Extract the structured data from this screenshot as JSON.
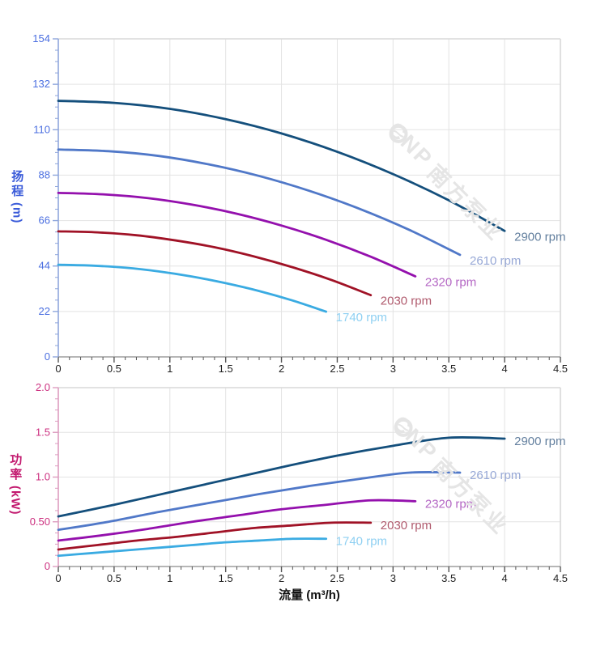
{
  "watermark": {
    "brand": "CNP",
    "brand_cn": "南方泵业"
  },
  "chart_data": [
    {
      "type": "line",
      "id": "head-vs-flow",
      "ylabel": "扬程",
      "y_unit": "(m)",
      "xlabel": "",
      "xlim": [
        0,
        4.5
      ],
      "ylim": [
        0,
        154
      ],
      "x_major": 0.5,
      "x_minor": 0.1,
      "y_major": 22,
      "y_minor": 5.5,
      "x_tick_labels": [
        "0",
        "0.5",
        "1",
        "1.5",
        "2",
        "2.5",
        "3",
        "3.5",
        "4",
        "4.5"
      ],
      "y_tick_labels": [
        "0",
        "22",
        "44",
        "66",
        "88",
        "110",
        "132",
        "154"
      ],
      "grid": true,
      "legend_position": "end-of-line",
      "colors": {
        "y_tick": "#4a6ee0",
        "x_tick": "#222222",
        "y_axis": "#8fa6dc",
        "x_axis": "#9e9e9e",
        "grid": "#e3e3e3",
        "border": "#d9d9d9"
      },
      "series": [
        {
          "name": "2900 rpm",
          "color": "#144f7c",
          "label_color": "#64809f",
          "x": [
            0,
            0.5,
            1,
            1.5,
            2,
            2.5,
            3,
            3.5,
            4
          ],
          "y": [
            124,
            123,
            120.1,
            115.1,
            108.2,
            99.3,
            88.5,
            75.8,
            61
          ]
        },
        {
          "name": "2610 rpm",
          "color": "#5078c8",
          "label_color": "#97a8d6",
          "x": [
            0,
            0.45,
            0.9,
            1.35,
            1.8,
            2.25,
            2.7,
            3.15,
            3.6
          ],
          "y": [
            100.4,
            99.6,
            97.3,
            93.2,
            87.6,
            80.4,
            71.7,
            61.4,
            49.4
          ]
        },
        {
          "name": "2320 rpm",
          "color": "#9410ad",
          "label_color": "#b467c4",
          "x": [
            0,
            0.4,
            0.8,
            1.2,
            1.6,
            2,
            2.4,
            2.8,
            3.2
          ],
          "y": [
            79.4,
            78.7,
            76.9,
            73.7,
            69.3,
            63.6,
            56.7,
            48.5,
            39
          ]
        },
        {
          "name": "2030 rpm",
          "color": "#a01226",
          "label_color": "#b05b6e",
          "x": [
            0,
            0.35,
            0.7,
            1.05,
            1.4,
            1.75,
            2.1,
            2.45,
            2.8
          ],
          "y": [
            60.8,
            60.3,
            58.9,
            56.4,
            53.1,
            48.7,
            43.4,
            37.2,
            29.9
          ]
        },
        {
          "name": "1740 rpm",
          "color": "#3aabe2",
          "label_color": "#8fd0f2",
          "x": [
            0,
            0.3,
            0.6,
            0.9,
            1.2,
            1.5,
            1.8,
            2.1,
            2.4
          ],
          "y": [
            44.6,
            44.2,
            43.2,
            41.4,
            38.9,
            35.7,
            31.9,
            27.3,
            21.9
          ]
        }
      ]
    },
    {
      "type": "line",
      "id": "power-vs-flow",
      "ylabel": "功率",
      "y_unit": "(kW)",
      "xlabel": "流量 (m³/h)",
      "xlim": [
        0,
        4.5
      ],
      "ylim": [
        0,
        2
      ],
      "x_major": 0.5,
      "x_minor": 0.1,
      "y_major": 0.5,
      "y_minor": 0.125,
      "x_tick_labels": [
        "0",
        "0.5",
        "1",
        "1.5",
        "2",
        "2.5",
        "3",
        "3.5",
        "4",
        "4.5"
      ],
      "y_tick_labels": [
        "0",
        "0.50",
        "1.0",
        "1.5",
        "2.0"
      ],
      "grid": true,
      "legend_position": "end-of-line",
      "colors": {
        "y_tick": "#cc2f7f",
        "x_tick": "#222222",
        "y_axis": "#dd9cc0",
        "x_axis": "#9e9e9e",
        "grid": "#e3e3e3",
        "border": "#d9d9d9"
      },
      "series": [
        {
          "name": "2900 rpm",
          "color": "#144f7c",
          "label_color": "#64809f",
          "x": [
            0,
            0.5,
            1,
            1.5,
            2,
            2.5,
            3,
            3.5,
            4
          ],
          "y": [
            0.56,
            0.69,
            0.83,
            0.97,
            1.11,
            1.24,
            1.35,
            1.44,
            1.43
          ]
        },
        {
          "name": "2610 rpm",
          "color": "#5078c8",
          "label_color": "#97a8d6",
          "x": [
            0,
            0.45,
            0.9,
            1.35,
            1.8,
            2.25,
            2.7,
            3.15,
            3.6
          ],
          "y": [
            0.41,
            0.5,
            0.61,
            0.71,
            0.81,
            0.9,
            0.98,
            1.05,
            1.05
          ]
        },
        {
          "name": "2320 rpm",
          "color": "#9410ad",
          "label_color": "#b467c4",
          "x": [
            0,
            0.4,
            0.8,
            1.2,
            1.6,
            2,
            2.4,
            2.8,
            3.2
          ],
          "y": [
            0.29,
            0.35,
            0.42,
            0.5,
            0.57,
            0.64,
            0.69,
            0.74,
            0.73
          ]
        },
        {
          "name": "2030 rpm",
          "color": "#a01226",
          "label_color": "#b05b6e",
          "x": [
            0,
            0.35,
            0.7,
            1.05,
            1.4,
            1.75,
            2.1,
            2.45,
            2.8
          ],
          "y": [
            0.19,
            0.24,
            0.29,
            0.33,
            0.38,
            0.43,
            0.46,
            0.49,
            0.49
          ]
        },
        {
          "name": "1740 rpm",
          "color": "#3aabe2",
          "label_color": "#8fd0f2",
          "x": [
            0,
            0.3,
            0.6,
            0.9,
            1.2,
            1.5,
            1.8,
            2.1,
            2.4
          ],
          "y": [
            0.12,
            0.15,
            0.18,
            0.21,
            0.24,
            0.27,
            0.29,
            0.31,
            0.31
          ]
        }
      ]
    }
  ]
}
